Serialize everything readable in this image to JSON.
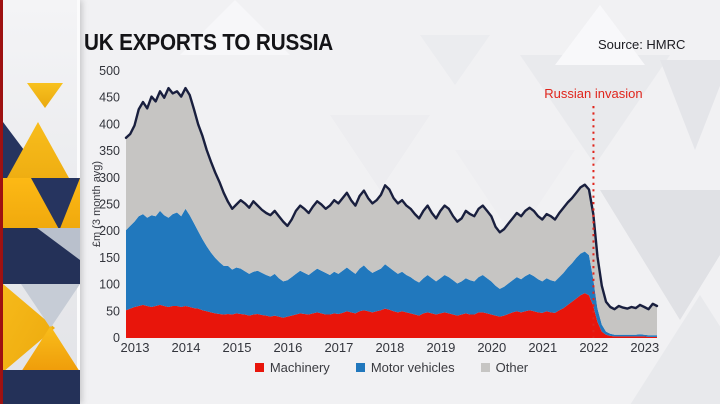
{
  "page": {
    "title": "UK EXPORTS TO RUSSIA",
    "source": "Source: HMRC"
  },
  "colors": {
    "machinery": "#e8150b",
    "motor_vehicles": "#2178bd",
    "other": "#c6c5c3",
    "total_line": "#191f3e",
    "annotation_red": "#e0251c",
    "left_edge_red": "#a31212",
    "strip_navy": "#243158",
    "strip_yellow": "#f6b81c"
  },
  "chart_data": {
    "type": "area",
    "stacked": true,
    "title": "UK EXPORTS TO RUSSIA",
    "ylabel": "£m (3 month avg)",
    "xlabel": "",
    "grid": false,
    "legend_position": "bottom",
    "ylim": [
      0,
      500
    ],
    "y_ticks": [
      0,
      50,
      100,
      150,
      200,
      250,
      300,
      350,
      400,
      450,
      500
    ],
    "x_tick_years": [
      2013,
      2014,
      2015,
      2016,
      2017,
      2018,
      2019,
      2020,
      2021,
      2022,
      2023
    ],
    "x_start": "2013-01",
    "x_end": "2023-06",
    "x_step_months": 1,
    "annotation": {
      "label": "Russian invasion",
      "x_year": 2022.17
    },
    "total_line_color": "#191f3e",
    "series": [
      {
        "name": "Machinery",
        "color": "#e8150b",
        "values": [
          52,
          55,
          58,
          60,
          62,
          60,
          58,
          60,
          62,
          60,
          58,
          60,
          60,
          58,
          60,
          58,
          56,
          55,
          52,
          50,
          48,
          46,
          45,
          44,
          45,
          44,
          46,
          45,
          44,
          42,
          44,
          45,
          43,
          42,
          40,
          42,
          40,
          38,
          40,
          42,
          44,
          46,
          45,
          44,
          46,
          48,
          46,
          44,
          44,
          46,
          45,
          47,
          50,
          48,
          46,
          50,
          52,
          50,
          48,
          50,
          52,
          55,
          53,
          50,
          48,
          50,
          48,
          46,
          44,
          42,
          46,
          48,
          46,
          44,
          46,
          48,
          46,
          44,
          42,
          44,
          46,
          44,
          44,
          48,
          48,
          46,
          44,
          42,
          40,
          42,
          45,
          48,
          50,
          48,
          50,
          52,
          50,
          48,
          47,
          50,
          48,
          47,
          52,
          56,
          62,
          68,
          74,
          80,
          84,
          80,
          60,
          30,
          12,
          6,
          4,
          3,
          3,
          3,
          3,
          3,
          3,
          3,
          3,
          2,
          2,
          2
        ]
      },
      {
        "name": "Motor vehicles",
        "color": "#2178bd",
        "values": [
          150,
          155,
          160,
          168,
          170,
          165,
          172,
          168,
          176,
          170,
          167,
          172,
          175,
          170,
          182,
          172,
          159,
          145,
          133,
          122,
          112,
          104,
          97,
          91,
          90,
          84,
          86,
          85,
          81,
          78,
          80,
          81,
          79,
          76,
          75,
          78,
          72,
          68,
          68,
          72,
          76,
          80,
          77,
          74,
          78,
          82,
          80,
          78,
          74,
          78,
          75,
          79,
          82,
          78,
          74,
          80,
          84,
          78,
          74,
          76,
          78,
          83,
          79,
          76,
          72,
          74,
          70,
          68,
          64,
          62,
          66,
          70,
          66,
          62,
          66,
          70,
          68,
          64,
          60,
          62,
          66,
          64,
          62,
          66,
          70,
          66,
          62,
          56,
          52,
          54,
          57,
          60,
          64,
          62,
          66,
          68,
          66,
          62,
          59,
          62,
          60,
          59,
          62,
          66,
          70,
          72,
          76,
          78,
          78,
          75,
          50,
          25,
          13,
          6,
          4,
          3,
          3,
          3,
          3,
          3,
          3,
          4,
          3,
          3,
          3,
          3
        ]
      },
      {
        "name": "Other",
        "color": "#c6c5c3",
        "values": [
          173,
          172,
          180,
          200,
          210,
          205,
          222,
          215,
          224,
          220,
          243,
          226,
          227,
          224,
          226,
          225,
          213,
          200,
          193,
          180,
          170,
          160,
          150,
          137,
          120,
          114,
          118,
          128,
          127,
          124,
          132,
          122,
          118,
          116,
          115,
          118,
          116,
          112,
          102,
          108,
          118,
          122,
          120,
          116,
          122,
          126,
          124,
          120,
          130,
          134,
          132,
          136,
          140,
          132,
          128,
          136,
          140,
          134,
          130,
          132,
          138,
          148,
          146,
          136,
          132,
          134,
          130,
          128,
          124,
          120,
          126,
          130,
          122,
          118,
          126,
          130,
          128,
          120,
          116,
          118,
          126,
          124,
          122,
          128,
          130,
          126,
          122,
          110,
          106,
          108,
          112,
          116,
          120,
          118,
          122,
          124,
          122,
          118,
          116,
          120,
          120,
          116,
          120,
          122,
          122,
          122,
          122,
          124,
          125,
          123,
          122,
          97,
          73,
          56,
          50,
          48,
          54,
          51,
          49,
          52,
          50,
          55,
          52,
          49,
          59,
          55
        ]
      }
    ]
  }
}
